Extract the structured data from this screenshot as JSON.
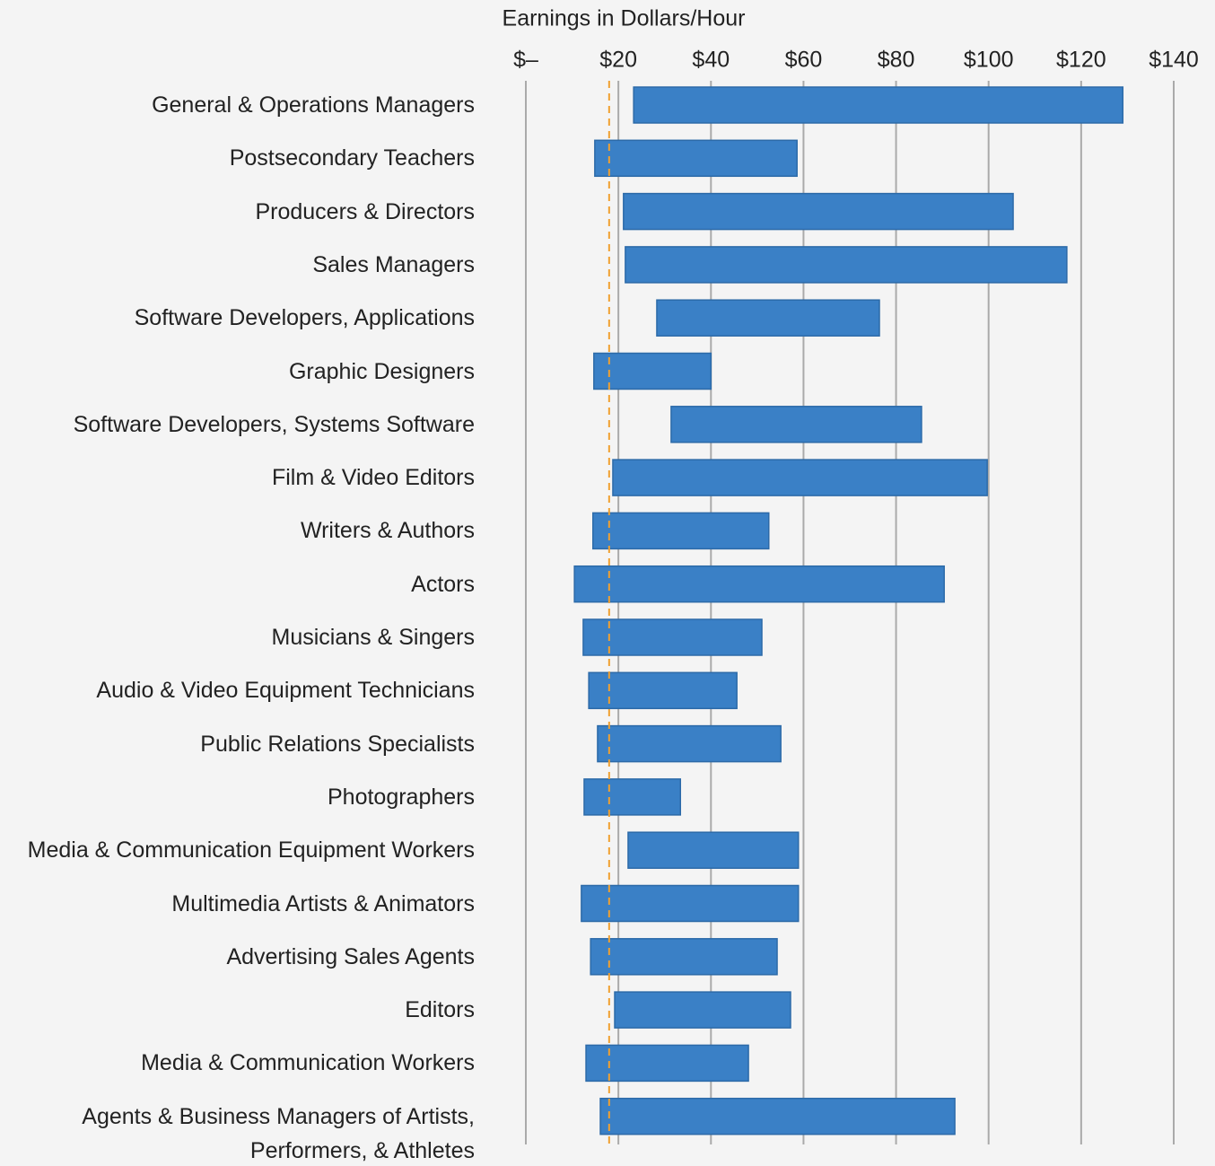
{
  "chart_data": {
    "type": "range-bar",
    "axis_title": "Earnings in Dollars/Hour",
    "categories": [
      "General & Operations Managers",
      "Postsecondary Teachers",
      "Producers & Directors",
      "Sales Managers",
      "Software Developers, Applications",
      "Graphic Designers",
      "Software Developers, Systems Software",
      "Film & Video Editors",
      "Writers & Authors",
      "Actors",
      "Musicians & Singers",
      "Audio & Video Equipment Technicians",
      "Public Relations Specialists",
      "Photographers",
      "Media & Communication Equipment Workers",
      "Multimedia Artists & Animators",
      "Advertising Sales Agents",
      "Editors",
      "Media & Communication Workers",
      "Agents & Business Managers of Artists,\nPerformers, & Athletes"
    ],
    "low": [
      23.3,
      14.9,
      21.1,
      21.5,
      28.3,
      14.7,
      31.4,
      18.8,
      14.5,
      10.5,
      12.4,
      13.6,
      15.5,
      12.6,
      22.1,
      12.0,
      14.0,
      19.2,
      13.0,
      16.1
    ],
    "high": [
      129.0,
      58.6,
      105.3,
      116.9,
      76.4,
      40.0,
      85.5,
      99.7,
      52.5,
      90.4,
      51.0,
      45.6,
      55.1,
      33.4,
      58.9,
      58.9,
      54.3,
      57.2,
      48.1,
      92.7
    ],
    "color": "#3a80c6",
    "reference_line": 18,
    "reference_color": "#f0a030",
    "xlim": [
      0,
      140
    ],
    "xticks": [
      {
        "value": 0,
        "label": "$–"
      },
      {
        "value": 20,
        "label": "$20"
      },
      {
        "value": 40,
        "label": "$40"
      },
      {
        "value": 60,
        "label": "$60"
      },
      {
        "value": 80,
        "label": "$80"
      },
      {
        "value": 100,
        "label": "$100"
      },
      {
        "value": 120,
        "label": "$120"
      },
      {
        "value": 140,
        "label": "$140"
      }
    ],
    "grid": true
  }
}
